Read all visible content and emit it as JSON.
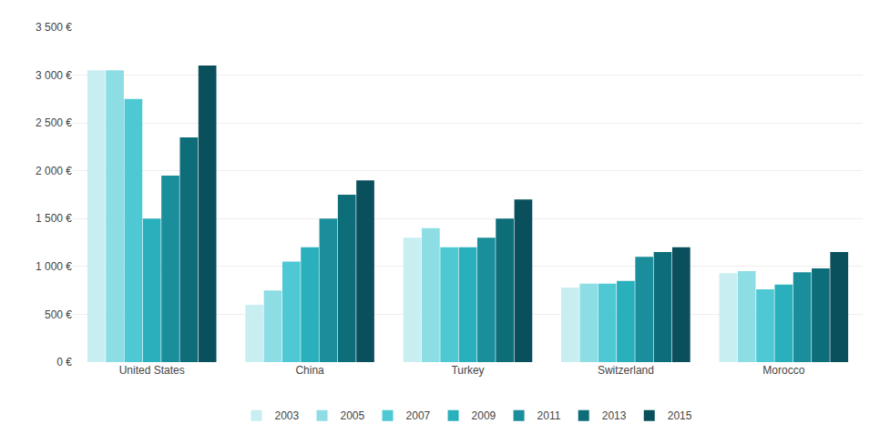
{
  "chart_data": {
    "type": "bar",
    "categories": [
      "United States",
      "China",
      "Turkey",
      "Switzerland",
      "Morocco"
    ],
    "series": [
      {
        "name": "2003",
        "color": "#c8eef2",
        "values": [
          3050,
          600,
          1300,
          780,
          930
        ]
      },
      {
        "name": "2005",
        "color": "#8ddde5",
        "values": [
          3050,
          750,
          1400,
          820,
          950
        ]
      },
      {
        "name": "2007",
        "color": "#4ec9d4",
        "values": [
          2750,
          1050,
          1200,
          820,
          760
        ]
      },
      {
        "name": "2009",
        "color": "#2ab0bc",
        "values": [
          1500,
          1200,
          1200,
          850,
          810
        ]
      },
      {
        "name": "2011",
        "color": "#1a8e9a",
        "values": [
          1950,
          1500,
          1300,
          1100,
          940
        ]
      },
      {
        "name": "2013",
        "color": "#0d6e7a",
        "values": [
          2350,
          1750,
          1500,
          1150,
          980
        ]
      },
      {
        "name": "2015",
        "color": "#094f5c",
        "values": [
          3100,
          1900,
          1700,
          1200,
          1150
        ]
      }
    ],
    "ylim": [
      0,
      3500
    ],
    "yticks": [
      {
        "value": 0,
        "label": "0 €"
      },
      {
        "value": 500,
        "label": "500 €"
      },
      {
        "value": 1000,
        "label": "1 000 €"
      },
      {
        "value": 1500,
        "label": "1 500 €"
      },
      {
        "value": 2000,
        "label": "2 000 €"
      },
      {
        "value": 2500,
        "label": "2 500 €"
      },
      {
        "value": 3000,
        "label": "3 000 €"
      },
      {
        "value": 3500,
        "label": "3 500 €"
      }
    ],
    "grid": true,
    "legend": "bottom"
  }
}
